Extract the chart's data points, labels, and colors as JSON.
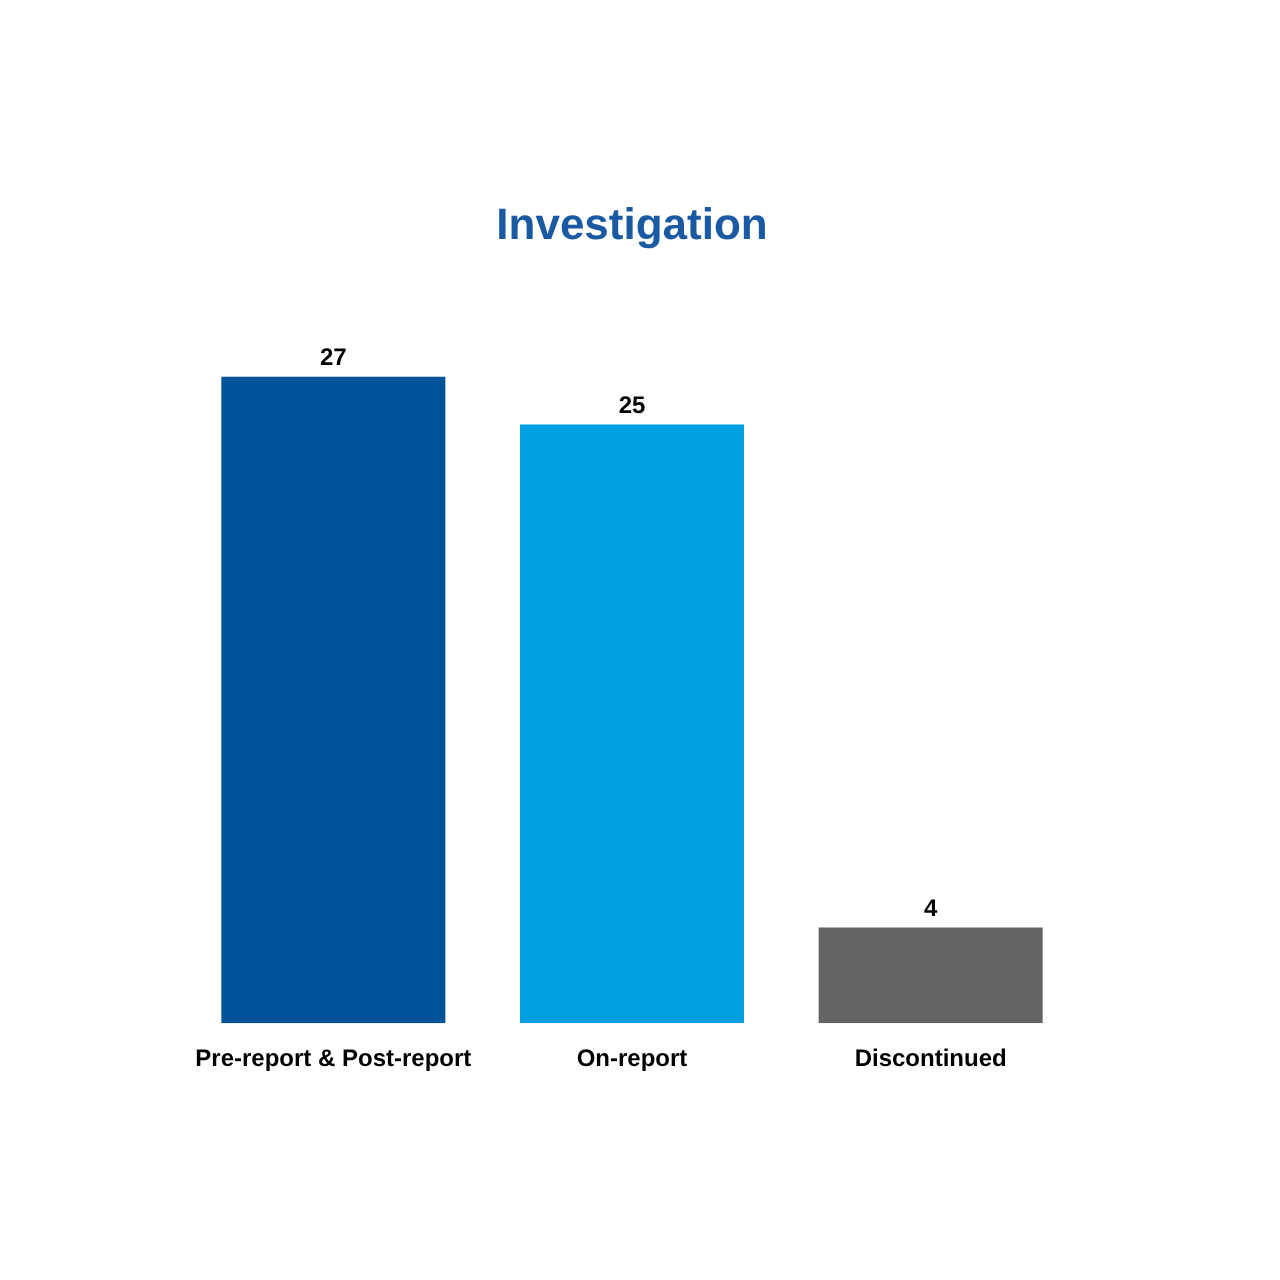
{
  "chart_data": {
    "type": "bar",
    "title": "Investigation",
    "categories": [
      "Pre-report & Post-report",
      "On-report",
      "Discontinued"
    ],
    "values": [
      27,
      25,
      4
    ],
    "colors": [
      "#00529b",
      "#009fdf",
      "#636466"
    ],
    "data_labels": true,
    "grid": false,
    "legend": false
  }
}
